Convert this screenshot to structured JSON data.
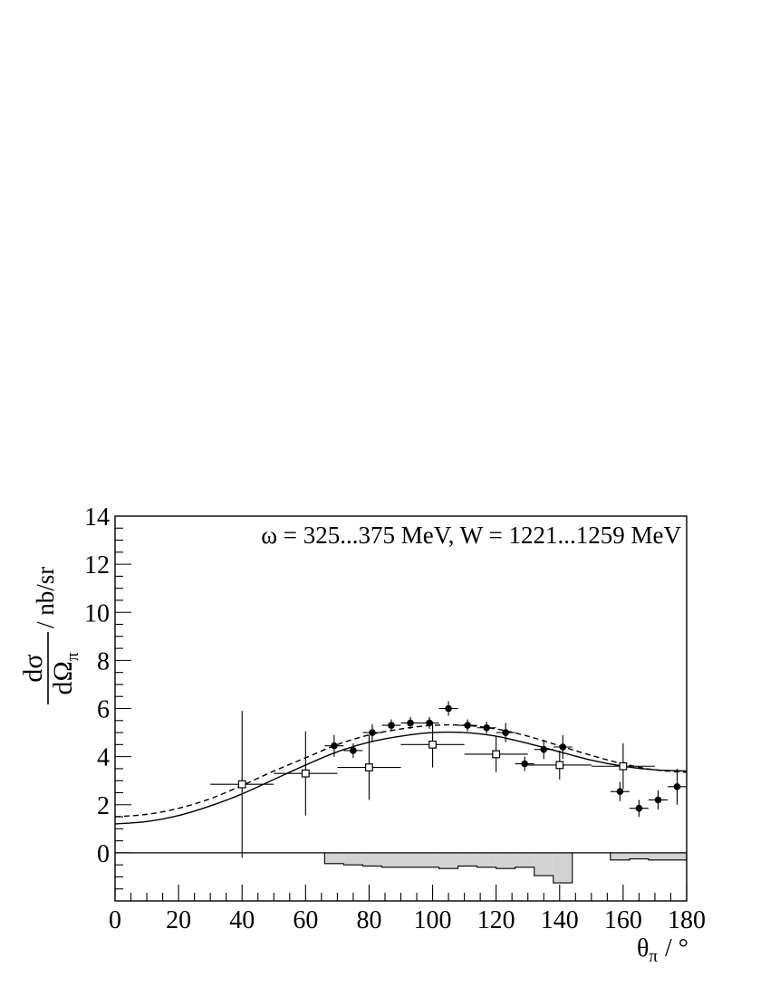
{
  "chart_data": {
    "type": "scatter",
    "annotation": "ω = 325...375 MeV, W = 1221...1259 MeV",
    "ylabel_numerator": "dσ",
    "ylabel_denominator_main": "dΩ",
    "ylabel_denominator_sub": "π",
    "ylabel_unit": "/ nb/sr",
    "xlabel_main": "θ",
    "xlabel_sub": "π",
    "xlabel_unit": "/ °",
    "xlim": [
      0,
      180
    ],
    "ylim": [
      -2,
      14
    ],
    "x_ticks": [
      0,
      20,
      40,
      60,
      80,
      100,
      120,
      140,
      160,
      180
    ],
    "x_tick_labels": [
      "0",
      "20",
      "40",
      "60",
      "80",
      "100",
      "120",
      "140",
      "160",
      "180"
    ],
    "y_ticks": [
      0,
      2,
      4,
      6,
      8,
      10,
      12,
      14
    ],
    "y_tick_labels": [
      "0",
      "2",
      "4",
      "6",
      "8",
      "10",
      "12",
      "14"
    ],
    "series": [
      {
        "marker": "filled-circle",
        "points": [
          {
            "x": 69,
            "y": 4.45,
            "xerr": 3,
            "yerr": 0.45
          },
          {
            "x": 75,
            "y": 4.25,
            "xerr": 3,
            "yerr": 0.3
          },
          {
            "x": 81,
            "y": 5.0,
            "xerr": 3,
            "yerr": 0.35
          },
          {
            "x": 87,
            "y": 5.3,
            "xerr": 3,
            "yerr": 0.25
          },
          {
            "x": 93,
            "y": 5.4,
            "xerr": 3,
            "yerr": 0.25
          },
          {
            "x": 99,
            "y": 5.4,
            "xerr": 3,
            "yerr": 0.25
          },
          {
            "x": 105,
            "y": 6.0,
            "xerr": 3,
            "yerr": 0.3
          },
          {
            "x": 111,
            "y": 5.3,
            "xerr": 3,
            "yerr": 0.25
          },
          {
            "x": 117,
            "y": 5.2,
            "xerr": 3,
            "yerr": 0.25
          },
          {
            "x": 123,
            "y": 5.0,
            "xerr": 3,
            "yerr": 0.4
          },
          {
            "x": 129,
            "y": 3.7,
            "xerr": 3,
            "yerr": 0.3
          },
          {
            "x": 135,
            "y": 4.3,
            "xerr": 3,
            "yerr": 0.4
          },
          {
            "x": 141,
            "y": 4.4,
            "xerr": 3,
            "yerr": 0.5
          },
          {
            "x": 159,
            "y": 2.55,
            "xerr": 3,
            "yerr": 0.4
          },
          {
            "x": 165,
            "y": 1.85,
            "xerr": 3,
            "yerr": 0.35
          },
          {
            "x": 171,
            "y": 2.2,
            "xerr": 3,
            "yerr": 0.4
          },
          {
            "x": 177,
            "y": 2.75,
            "xerr": 3,
            "yerr": 0.75
          }
        ]
      },
      {
        "marker": "open-square",
        "points": [
          {
            "x": 40,
            "y": 2.85,
            "xerr": 10,
            "yerr": 3.05
          },
          {
            "x": 60,
            "y": 3.3,
            "xerr": 10,
            "yerr": 1.75
          },
          {
            "x": 80,
            "y": 3.55,
            "xerr": 10,
            "yerr": 1.35
          },
          {
            "x": 100,
            "y": 4.5,
            "xerr": 10,
            "yerr": 0.95
          },
          {
            "x": 120,
            "y": 4.1,
            "xerr": 10,
            "yerr": 0.75
          },
          {
            "x": 140,
            "y": 3.65,
            "xerr": 10,
            "yerr": 0.6
          },
          {
            "x": 160,
            "y": 3.6,
            "xerr": 10,
            "yerr": 0.95
          }
        ]
      }
    ],
    "curves": [
      {
        "style": "solid",
        "points": [
          [
            0,
            1.2
          ],
          [
            10,
            1.3
          ],
          [
            20,
            1.55
          ],
          [
            30,
            1.95
          ],
          [
            40,
            2.45
          ],
          [
            50,
            3.05
          ],
          [
            60,
            3.65
          ],
          [
            70,
            4.2
          ],
          [
            80,
            4.6
          ],
          [
            90,
            4.85
          ],
          [
            100,
            5.0
          ],
          [
            110,
            5.0
          ],
          [
            120,
            4.85
          ],
          [
            130,
            4.55
          ],
          [
            140,
            4.2
          ],
          [
            150,
            3.85
          ],
          [
            160,
            3.6
          ],
          [
            170,
            3.45
          ],
          [
            180,
            3.4
          ]
        ]
      },
      {
        "style": "dashed",
        "points": [
          [
            0,
            1.5
          ],
          [
            10,
            1.6
          ],
          [
            20,
            1.85
          ],
          [
            30,
            2.25
          ],
          [
            40,
            2.8
          ],
          [
            50,
            3.4
          ],
          [
            60,
            3.95
          ],
          [
            70,
            4.5
          ],
          [
            80,
            4.9
          ],
          [
            90,
            5.15
          ],
          [
            100,
            5.3
          ],
          [
            110,
            5.3
          ],
          [
            120,
            5.15
          ],
          [
            130,
            4.85
          ],
          [
            140,
            4.45
          ],
          [
            150,
            4.05
          ],
          [
            160,
            3.7
          ],
          [
            170,
            3.45
          ],
          [
            180,
            3.35
          ]
        ]
      }
    ],
    "systematic_bins": [
      {
        "x0": 66,
        "x1": 72,
        "y": -0.45
      },
      {
        "x0": 72,
        "x1": 78,
        "y": -0.5
      },
      {
        "x0": 78,
        "x1": 84,
        "y": -0.55
      },
      {
        "x0": 84,
        "x1": 90,
        "y": -0.6
      },
      {
        "x0": 90,
        "x1": 96,
        "y": -0.6
      },
      {
        "x0": 96,
        "x1": 102,
        "y": -0.6
      },
      {
        "x0": 102,
        "x1": 108,
        "y": -0.65
      },
      {
        "x0": 108,
        "x1": 114,
        "y": -0.55
      },
      {
        "x0": 114,
        "x1": 120,
        "y": -0.6
      },
      {
        "x0": 120,
        "x1": 126,
        "y": -0.65
      },
      {
        "x0": 126,
        "x1": 132,
        "y": -0.6
      },
      {
        "x0": 132,
        "x1": 138,
        "y": -0.95
      },
      {
        "x0": 138,
        "x1": 144,
        "y": -1.25
      },
      {
        "x0": 156,
        "x1": 162,
        "y": -0.3
      },
      {
        "x0": 162,
        "x1": 168,
        "y": -0.25
      },
      {
        "x0": 168,
        "x1": 174,
        "y": -0.3
      },
      {
        "x0": 174,
        "x1": 180,
        "y": -0.3
      }
    ],
    "band_color": "#d3d3d3",
    "line_color": "#000000",
    "grid": false
  }
}
